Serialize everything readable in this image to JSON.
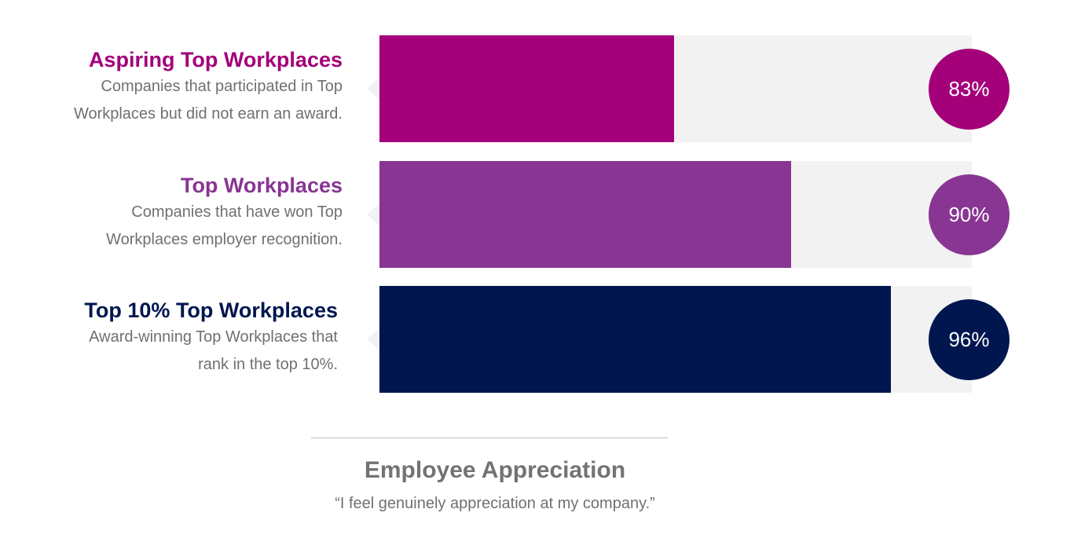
{
  "chart_data": {
    "type": "bar",
    "orientation": "horizontal",
    "title": "Employee Appreciation",
    "subtitle": "“I feel genuinely appreciation at my company.”",
    "xlim": [
      0,
      100
    ],
    "categories": [
      "Aspiring Top Workplaces",
      "Top Workplaces",
      "Top 10% Top Workplaces"
    ],
    "values": [
      83,
      90,
      96
    ],
    "rows": [
      {
        "title": "Aspiring Top Workplaces",
        "desc_line1": "Companies that participated in Top",
        "desc_line2": "Workplaces but did not earn an award.",
        "value": 83,
        "value_label": "83%",
        "color": "#a3007a"
      },
      {
        "title": "Top Workplaces",
        "desc_line1": "Companies that have won Top",
        "desc_line2": "Workplaces employer recognition.",
        "value": 90,
        "value_label": "90%",
        "color": "#883593"
      },
      {
        "title": "Top 10% Top Workplaces",
        "desc_line1": "Award-winning Top Workplaces that",
        "desc_line2": "rank in the top 10%.",
        "value": 96,
        "value_label": "96%",
        "color": "#00164f"
      }
    ]
  }
}
